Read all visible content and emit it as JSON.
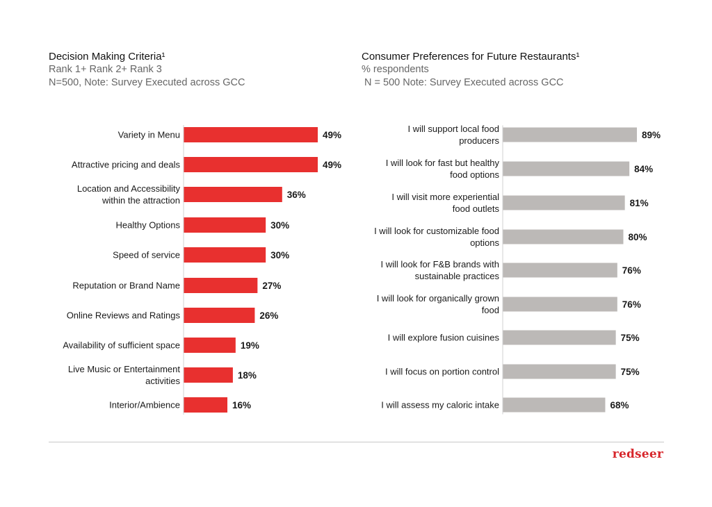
{
  "chart_data": [
    {
      "type": "bar",
      "orientation": "horizontal",
      "title": "Decision Making Criteria¹",
      "subtitle_lines": [
        "Rank 1+ Rank 2+ Rank 3",
        "N=500, Note: Survey Executed across GCC"
      ],
      "categories": [
        [
          "Variety in Menu"
        ],
        [
          "Attractive pricing and deals"
        ],
        [
          "Location and Accessibility",
          "within the attraction"
        ],
        [
          "Healthy Options"
        ],
        [
          "Speed of service"
        ],
        [
          "Reputation or Brand Name"
        ],
        [
          "Online Reviews and Ratings"
        ],
        [
          "Availability of sufficient space"
        ],
        [
          "Live Music or Entertainment",
          "activities"
        ],
        [
          "Interior/Ambience"
        ]
      ],
      "values": [
        49,
        49,
        36,
        30,
        30,
        27,
        26,
        19,
        18,
        16
      ],
      "value_labels": [
        "49%",
        "49%",
        "36%",
        "30%",
        "30%",
        "27%",
        "26%",
        "19%",
        "18%",
        "16%"
      ],
      "unit": "%",
      "color": "#e8302f",
      "xlim": [
        0,
        49
      ]
    },
    {
      "type": "bar",
      "orientation": "horizontal",
      "title": "Consumer Preferences for Future Restaurants¹",
      "subtitle_lines": [
        "% respondents",
        " N = 500 Note: Survey Executed across GCC"
      ],
      "categories": [
        [
          "I will support local food",
          "producers"
        ],
        [
          "I will look for fast but healthy",
          "food options"
        ],
        [
          "I will visit more experiential",
          "food outlets"
        ],
        [
          "I will look for customizable food",
          "options"
        ],
        [
          "I will look for F&B brands with",
          "sustainable practices"
        ],
        [
          "I will look for organically grown",
          "food"
        ],
        [
          "I will explore fusion cuisines"
        ],
        [
          "I will focus on portion control"
        ],
        [
          "I will assess my caloric intake"
        ]
      ],
      "values": [
        89,
        84,
        81,
        80,
        76,
        76,
        75,
        75,
        68
      ],
      "value_labels": [
        "89%",
        "84%",
        "81%",
        "80%",
        "76%",
        "76%",
        "75%",
        "75%",
        "68%"
      ],
      "unit": "%",
      "color": "#bcb9b7",
      "xlim": [
        0,
        89
      ]
    }
  ],
  "brand": {
    "logo_text": "redseer"
  }
}
